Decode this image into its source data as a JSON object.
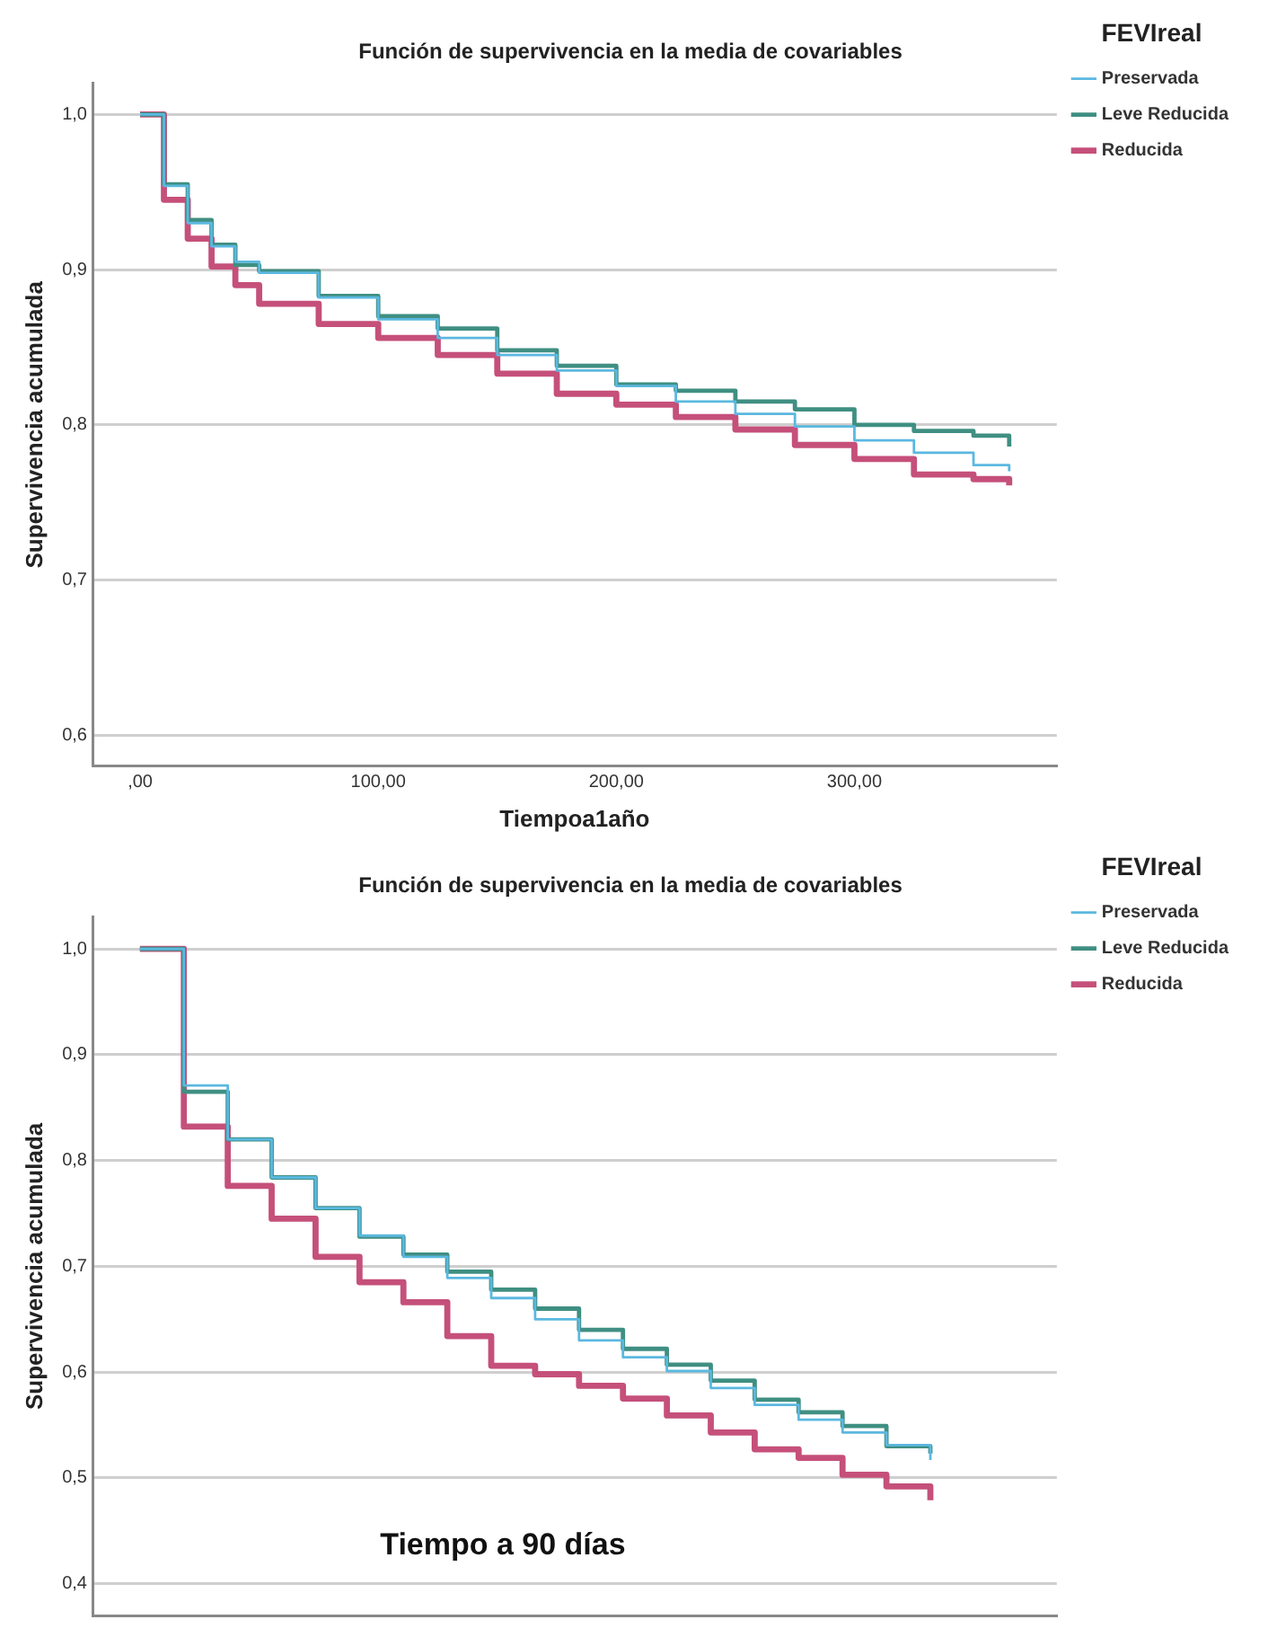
{
  "chart_data": [
    {
      "type": "step",
      "title": "Función de supervivencia en la media de covariables",
      "xlabel": "Tiempoa1año",
      "ylabel": "Supervivencia acumulada",
      "legend_title": "FEVIreal",
      "legend": "right",
      "grid": "y",
      "x": [
        0,
        10,
        20,
        30,
        40,
        50,
        75,
        100,
        125,
        150,
        175,
        200,
        225,
        250,
        275,
        300,
        325,
        350,
        365
      ],
      "xlim": [
        -20,
        385
      ],
      "xticks": [
        {
          "value": 0,
          "label": ",00"
        },
        {
          "value": 100,
          "label": "100,00"
        },
        {
          "value": 200,
          "label": "200,00"
        },
        {
          "value": 300,
          "label": "300,00"
        }
      ],
      "ylim": [
        0.58,
        1.02
      ],
      "yticks": [
        {
          "value": 0.6,
          "label": "0,6"
        },
        {
          "value": 0.7,
          "label": "0,7"
        },
        {
          "value": 0.8,
          "label": "0,8"
        },
        {
          "value": 0.9,
          "label": "0,9"
        },
        {
          "value": 1.0,
          "label": "1,0"
        }
      ],
      "series": [
        {
          "name": "Preservada",
          "color": "#5bb8e0",
          "values": [
            1.0,
            0.954,
            0.93,
            0.915,
            0.905,
            0.898,
            0.882,
            0.868,
            0.856,
            0.845,
            0.835,
            0.825,
            0.815,
            0.807,
            0.799,
            0.79,
            0.782,
            0.774,
            0.77
          ]
        },
        {
          "name": "Leve Reducida",
          "color": "#3f8f82",
          "values": [
            1.0,
            0.955,
            0.932,
            0.916,
            0.903,
            0.899,
            0.883,
            0.87,
            0.862,
            0.848,
            0.838,
            0.826,
            0.822,
            0.815,
            0.81,
            0.8,
            0.796,
            0.793,
            0.786
          ]
        },
        {
          "name": "Reducida",
          "color": "#c5507a",
          "values": [
            1.0,
            0.945,
            0.92,
            0.902,
            0.89,
            0.878,
            0.865,
            0.856,
            0.845,
            0.833,
            0.82,
            0.813,
            0.805,
            0.797,
            0.787,
            0.778,
            0.768,
            0.765,
            0.761
          ]
        }
      ]
    },
    {
      "type": "step",
      "title": "Función de supervivencia en la media de covariables",
      "ylabel": "Supervivencia acumulada",
      "legend_title": "FEVIreal",
      "legend": "right",
      "grid": "y",
      "tick_labels": "y",
      "annotations": [
        "Tiempo a 90 días"
      ],
      "categories": [
        null,
        null,
        null,
        null,
        null,
        null,
        null,
        null,
        null,
        null,
        null,
        null,
        null,
        null,
        null,
        null,
        null,
        null,
        null
      ],
      "ylim": [
        0.37,
        1.03
      ],
      "yticks": [
        {
          "value": 0.4,
          "label": "0,4"
        },
        {
          "value": 0.5,
          "label": "0,5"
        },
        {
          "value": 0.6,
          "label": "0,6"
        },
        {
          "value": 0.7,
          "label": "0,7"
        },
        {
          "value": 0.8,
          "label": "0,8"
        },
        {
          "value": 0.9,
          "label": "0,9"
        },
        {
          "value": 1.0,
          "label": "1,0"
        }
      ],
      "series": [
        {
          "name": "Preservada",
          "color": "#5bb8e0",
          "values": [
            1.0,
            0.871,
            0.82,
            0.784,
            0.755,
            0.729,
            0.709,
            0.689,
            0.67,
            0.65,
            0.63,
            0.614,
            0.601,
            0.585,
            0.569,
            0.555,
            0.543,
            0.531,
            0.517
          ]
        },
        {
          "name": "Leve Reducida",
          "color": "#3f8f82",
          "values": [
            1.0,
            0.865,
            0.82,
            0.784,
            0.755,
            0.728,
            0.711,
            0.695,
            0.678,
            0.66,
            0.64,
            0.622,
            0.607,
            0.592,
            0.574,
            0.562,
            0.549,
            0.53,
            0.523
          ]
        },
        {
          "name": "Reducida",
          "color": "#c5507a",
          "values": [
            1.0,
            0.832,
            0.776,
            0.745,
            0.709,
            0.685,
            0.666,
            0.634,
            0.606,
            0.598,
            0.587,
            0.575,
            0.559,
            0.543,
            0.527,
            0.519,
            0.503,
            0.492,
            0.479
          ]
        }
      ]
    }
  ]
}
